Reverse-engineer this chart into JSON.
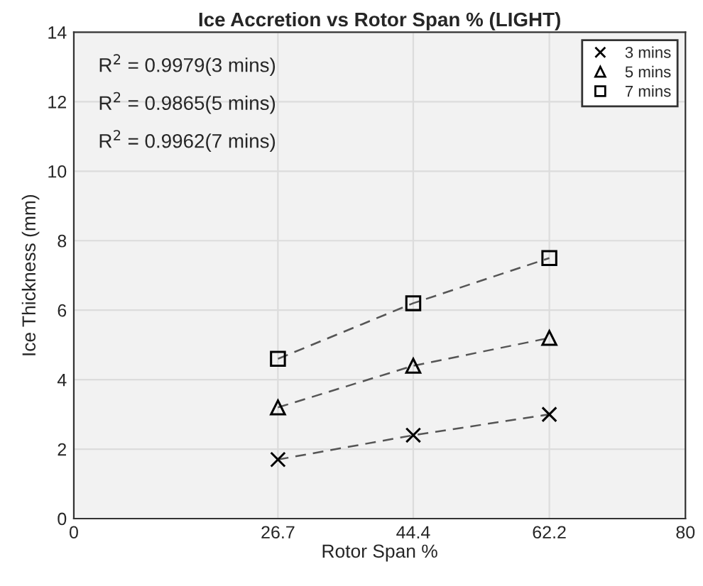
{
  "chart_data": {
    "type": "line",
    "title": "Ice Accretion vs Rotor Span % (LIGHT)",
    "xlabel": "Rotor Span %",
    "ylabel": "Ice Thickness (mm)",
    "x": [
      26.7,
      44.4,
      62.2
    ],
    "series": [
      {
        "name": "3 mins",
        "color": "#000000",
        "marker": "cross",
        "values": [
          1.7,
          2.4,
          3.0
        ]
      },
      {
        "name": "5 mins",
        "color": "#000000",
        "marker": "triangle",
        "values": [
          3.2,
          4.4,
          5.2
        ]
      },
      {
        "name": "7 mins",
        "color": "#000000",
        "marker": "square",
        "values": [
          4.6,
          6.2,
          7.5
        ]
      }
    ],
    "xlim": [
      0,
      80
    ],
    "xticks": [
      0,
      26.7,
      44.4,
      62.2,
      80
    ],
    "ylim": [
      0,
      14
    ],
    "yticks": [
      0,
      2,
      4,
      6,
      8,
      10,
      12,
      14
    ],
    "line_style": "dashed",
    "grid": true,
    "legend": "top right",
    "annotations": [
      "R$^{2}$ = 0.9979(3 mins)",
      "R$^{2}$ = 0.9865(5 mins)",
      "R$^{2}$ = 0.9962(7 mins)"
    ]
  }
}
